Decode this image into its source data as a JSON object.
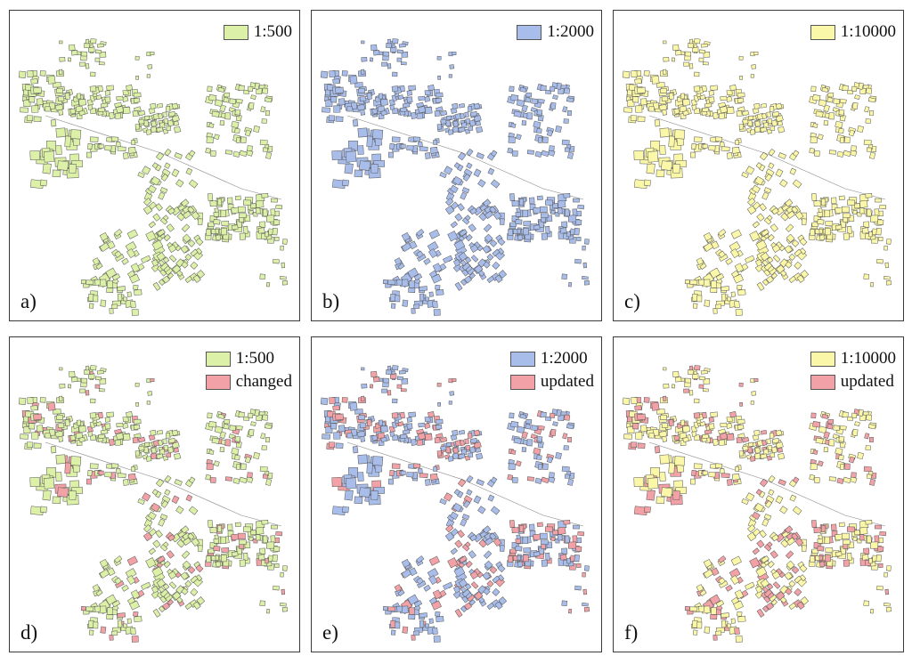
{
  "colors": {
    "green": "#dcf0a8",
    "blue": "#a9bdea",
    "yellow": "#fbf7a8",
    "red": "#f2a2a6",
    "outline": "#555555"
  },
  "panels": [
    {
      "id": "a",
      "label": "a)",
      "legend": [
        {
          "label": "1:500",
          "color_key": "green"
        }
      ]
    },
    {
      "id": "b",
      "label": "b)",
      "legend": [
        {
          "label": "1:2000",
          "color_key": "blue"
        }
      ]
    },
    {
      "id": "c",
      "label": "c)",
      "legend": [
        {
          "label": "1:10000",
          "color_key": "yellow"
        }
      ]
    },
    {
      "id": "d",
      "label": "d)",
      "legend": [
        {
          "label": "1:500",
          "color_key": "green"
        },
        {
          "label": "changed",
          "color_key": "red"
        }
      ]
    },
    {
      "id": "e",
      "label": "e)",
      "legend": [
        {
          "label": "1:2000",
          "color_key": "blue"
        },
        {
          "label": "updated",
          "color_key": "red"
        }
      ]
    },
    {
      "id": "f",
      "label": "f)",
      "legend": [
        {
          "label": "1:10000",
          "color_key": "yellow"
        },
        {
          "label": "updated",
          "color_key": "red"
        }
      ]
    }
  ]
}
